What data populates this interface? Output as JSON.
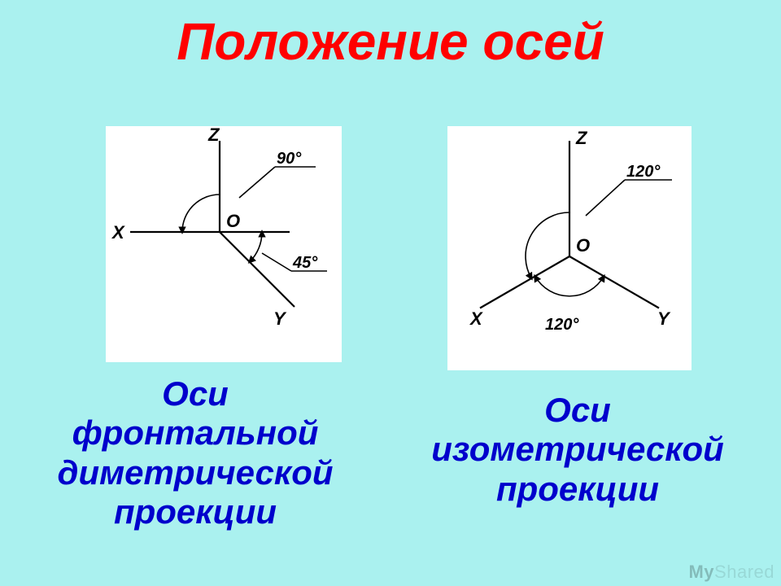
{
  "background_color": "#aaf1ef",
  "title": {
    "text": "Положение осей",
    "color": "#ff0000",
    "fontsize": 64
  },
  "caption_color": "#0000cc",
  "left": {
    "caption": "Оси\nфронтальной\nдиметрической\nпроекции",
    "labels": {
      "Z": "Z",
      "X": "X",
      "Y": "Y",
      "O": "O"
    },
    "angles": {
      "top": "90°",
      "mid": "45°"
    }
  },
  "right": {
    "caption": "Оси\nизометрической\nпроекции",
    "labels": {
      "Z": "Z",
      "X": "X",
      "Y": "Y",
      "O": "O"
    },
    "angles": {
      "top": "120°",
      "bottom": "120°"
    }
  },
  "diagram_style": {
    "panel_bg": "#ffffff",
    "stroke": "#000000",
    "line_width": 2.2,
    "arc_width": 1.6,
    "label_fontsize": 22,
    "small_fontsize": 18
  },
  "watermark": {
    "a": "My",
    "b": "Shared"
  }
}
